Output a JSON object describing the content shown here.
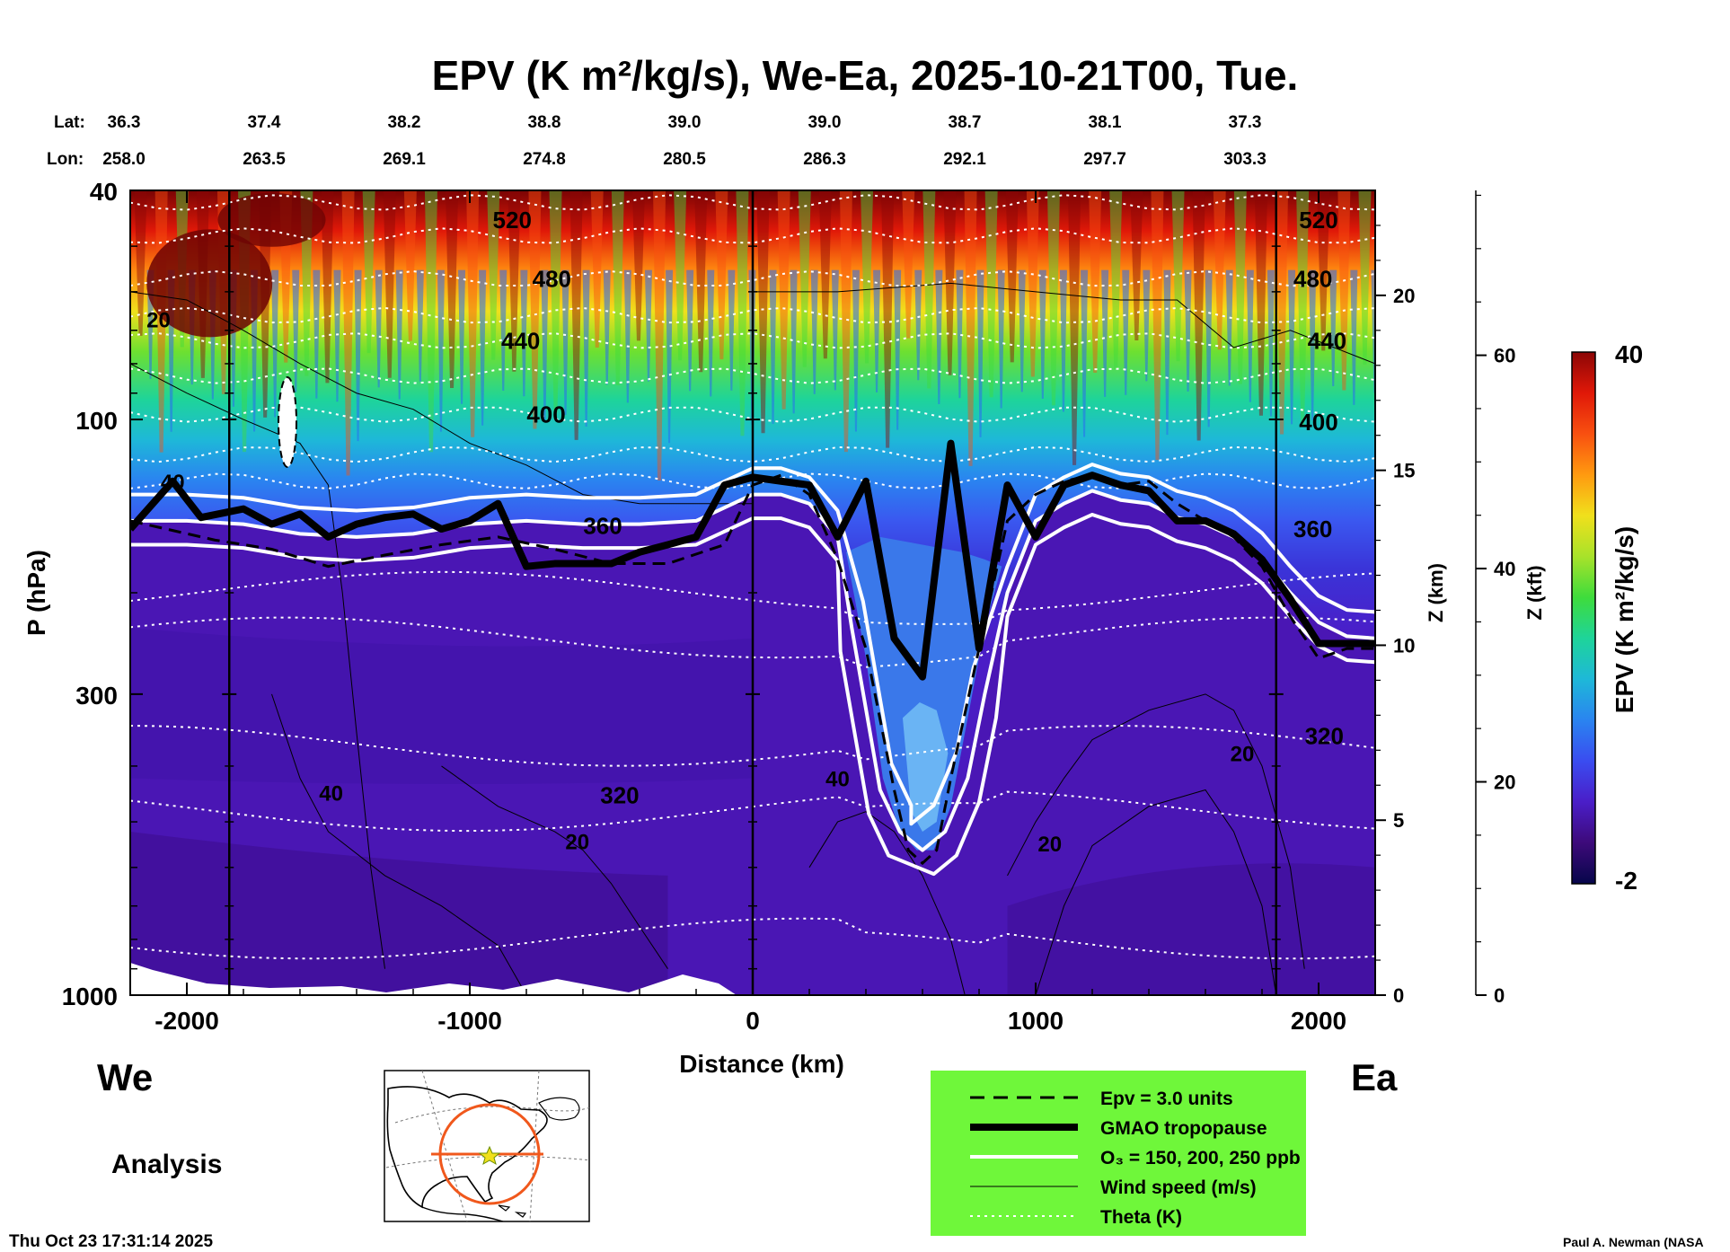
{
  "chart_data": {
    "type": "heatmap",
    "title": "EPV (K m²/kg/s), We-Ea, 2025-10-21T00, Tue.",
    "xlabel": "Distance (km)",
    "ylabel": "P (hPa)",
    "y2label": "Z (km)",
    "y3label": "Z (kft)",
    "colorbar_label": "EPV (K m²/kg/s)",
    "colorbar_range": [
      -2,
      40
    ],
    "xlim": [
      -2200,
      2200
    ],
    "ylim": [
      1000,
      40
    ],
    "yscale": "log",
    "x_ticks": [
      "-2000",
      "-1000",
      "0",
      "1000",
      "2000"
    ],
    "x_tick_values": [
      -2000,
      -1000,
      0,
      1000,
      2000
    ],
    "p_ticks": [
      "40",
      "100",
      "300",
      "1000"
    ],
    "p_tick_values": [
      40,
      100,
      300,
      1000
    ],
    "z_km_ticks": [
      "0",
      "5",
      "10",
      "15",
      "20"
    ],
    "z_km_values": [
      0,
      5,
      10,
      15,
      20
    ],
    "z_kft_ticks": [
      "0",
      "20",
      "40",
      "60"
    ],
    "z_kft_values": [
      0,
      20,
      40,
      60
    ],
    "colorbar_ticks": [
      "40",
      "-2"
    ],
    "lat_label": "Lat:",
    "lon_label": "Lon:",
    "lat_values": [
      "36.3",
      "37.4",
      "38.2",
      "38.8",
      "39.0",
      "39.0",
      "38.7",
      "38.1",
      "37.3"
    ],
    "lon_values": [
      "258.0",
      "263.5",
      "269.1",
      "274.8",
      "280.5",
      "286.3",
      "292.1",
      "297.7",
      "303.3"
    ],
    "vertical_lines_km": [
      -1850,
      0,
      1850
    ],
    "left_end_label": "We",
    "right_end_label": "Ea",
    "theta_labels": [
      {
        "text": "520",
        "x": -850,
        "p": 45
      },
      {
        "text": "480",
        "x": -710,
        "p": 57
      },
      {
        "text": "440",
        "x": -820,
        "p": 73
      },
      {
        "text": "400",
        "x": -730,
        "p": 98
      },
      {
        "text": "360",
        "x": -530,
        "p": 153
      },
      {
        "text": "320",
        "x": -470,
        "p": 450
      },
      {
        "text": "520",
        "x": 2000,
        "p": 45
      },
      {
        "text": "480",
        "x": 1980,
        "p": 57
      },
      {
        "text": "440",
        "x": 2030,
        "p": 73
      },
      {
        "text": "400",
        "x": 2000,
        "p": 101
      },
      {
        "text": "360",
        "x": 1980,
        "p": 155
      },
      {
        "text": "320",
        "x": 2020,
        "p": 355
      }
    ],
    "wind_labels": [
      {
        "text": "20",
        "x": -2100,
        "p": 67
      },
      {
        "text": "40",
        "x": -2050,
        "p": 128
      },
      {
        "text": "40",
        "x": -1490,
        "p": 445
      },
      {
        "text": "20",
        "x": -620,
        "p": 540
      },
      {
        "text": "40",
        "x": 300,
        "p": 420
      },
      {
        "text": "20",
        "x": 1050,
        "p": 545
      },
      {
        "text": "20",
        "x": 1730,
        "p": 380
      }
    ],
    "tropopause_hPa": {
      "x": [
        -2200,
        -2050,
        -1950,
        -1800,
        -1700,
        -1600,
        -1500,
        -1400,
        -1300,
        -1200,
        -1100,
        -1000,
        -900,
        -800,
        -700,
        -600,
        -500,
        -400,
        -300,
        -200,
        -100,
        0,
        100,
        200,
        300,
        400,
        500,
        600,
        700,
        800,
        900,
        1000,
        1100,
        1200,
        1300,
        1400,
        1500,
        1600,
        1700,
        1800,
        1900,
        2000,
        2100,
        2200
      ],
      "y": [
        155,
        128,
        148,
        143,
        152,
        146,
        160,
        152,
        148,
        146,
        155,
        150,
        140,
        180,
        178,
        178,
        178,
        170,
        165,
        160,
        130,
        126,
        128,
        130,
        160,
        128,
        240,
        280,
        110,
        250,
        130,
        160,
        130,
        125,
        130,
        133,
        150,
        150,
        158,
        175,
        205,
        245,
        245,
        245
      ]
    },
    "epv3_dashed_hPa": {
      "x": [
        -2200,
        -1900,
        -1700,
        -1500,
        -1300,
        -1100,
        -900,
        -700,
        -500,
        -300,
        -100,
        0,
        100,
        200,
        300,
        400,
        500,
        550,
        600,
        650,
        700,
        800,
        900,
        1000,
        1100,
        1200,
        1300,
        1400,
        1500,
        1600,
        1700,
        1800,
        1900,
        2000,
        2100,
        2200
      ],
      "y": [
        150,
        162,
        168,
        180,
        172,
        165,
        160,
        168,
        178,
        178,
        165,
        130,
        125,
        135,
        175,
        250,
        440,
        560,
        590,
        560,
        420,
        250,
        150,
        135,
        128,
        125,
        130,
        128,
        140,
        150,
        160,
        180,
        220,
        260,
        250,
        250
      ]
    },
    "ozone_ppb": [
      150,
      200,
      250
    ],
    "theta_K_levels": [
      320,
      360,
      400,
      440,
      480,
      520
    ],
    "wind_speed_levels_m_s": [
      20,
      40
    ],
    "contour_stats": {
      "stratosphere_epv_above_60hPa": "20-40",
      "troposphere_epv_below_200hPa": "0-2",
      "stratospheric_intrusion_center_km": 600
    }
  },
  "legend": {
    "items": [
      {
        "label": "Epv = 3.0 units",
        "style": "dashed"
      },
      {
        "label": "GMAO tropopause",
        "style": "thick"
      },
      {
        "label": "O₃ = 150, 200, 250 ppb",
        "style": "white-double"
      },
      {
        "label": "Wind speed (m/s)",
        "style": "thin"
      },
      {
        "label": "Theta (K)",
        "style": "dotted"
      }
    ],
    "background": "#6ff73a"
  },
  "footer": {
    "analysis": "Analysis",
    "timestamp": "Thu Oct 23 17:31:14 2025",
    "credit": "Paul A. Newman (NASA"
  },
  "colors": {
    "colormap": [
      "#06064a",
      "#3d0a7a",
      "#4a1ec8",
      "#3a4cf0",
      "#2a84f0",
      "#1eb8d8",
      "#1ed49a",
      "#3edc3c",
      "#a8e22a",
      "#f0e01c",
      "#ff9a10",
      "#f85010",
      "#e01808",
      "#8c0606"
    ]
  }
}
